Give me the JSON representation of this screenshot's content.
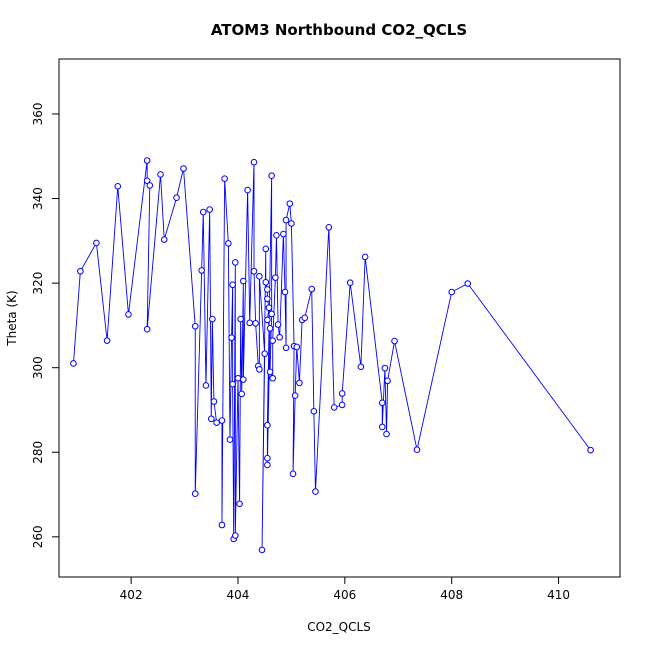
{
  "chart_data": {
    "type": "scatter",
    "title": "ATOM3 Northbound CO2_QCLS",
    "xlabel": "CO2_QCLS",
    "ylabel": "Theta (K)",
    "xlim": [
      400.65,
      411.15
    ],
    "ylim": [
      250.5,
      373.0
    ],
    "xticks": [
      402,
      404,
      406,
      408,
      410
    ],
    "yticks": [
      260,
      280,
      300,
      320,
      340,
      360
    ],
    "xtick_labels": [
      "402",
      "404",
      "406",
      "408",
      "410"
    ],
    "ytick_labels": [
      "260",
      "280",
      "300",
      "320",
      "340",
      "360"
    ],
    "grid": false,
    "legend": "none",
    "series_color": "#0000ff",
    "series": [
      {
        "points": [
          [
            400.92,
            301.0
          ],
          [
            401.05,
            322.8
          ],
          [
            401.35,
            329.5
          ],
          [
            401.55,
            306.4
          ],
          [
            401.75,
            342.9
          ],
          [
            401.95,
            312.6
          ],
          [
            402.3,
            349.0
          ],
          [
            402.3,
            344.2
          ],
          [
            402.35,
            343.1
          ],
          [
            402.3,
            309.1
          ],
          [
            402.55,
            345.7
          ],
          [
            402.62,
            330.3
          ],
          [
            402.85,
            340.2
          ],
          [
            402.98,
            347.1
          ],
          [
            403.2,
            309.8
          ],
          [
            403.2,
            270.2
          ],
          [
            403.32,
            323.0
          ],
          [
            403.35,
            336.8
          ],
          [
            403.4,
            295.8
          ],
          [
            403.47,
            337.4
          ],
          [
            403.5,
            287.9
          ],
          [
            403.52,
            311.5
          ],
          [
            403.55,
            292.0
          ],
          [
            403.6,
            287.0
          ],
          [
            403.7,
            287.5
          ],
          [
            403.7,
            262.8
          ],
          [
            403.75,
            344.7
          ],
          [
            403.82,
            329.4
          ],
          [
            403.85,
            283.0
          ],
          [
            403.88,
            307.1
          ],
          [
            403.9,
            319.6
          ],
          [
            403.9,
            296.1
          ],
          [
            403.92,
            259.5
          ],
          [
            403.95,
            324.9
          ],
          [
            403.95,
            260.3
          ],
          [
            404.0,
            297.5
          ],
          [
            404.03,
            267.8
          ],
          [
            404.05,
            311.5
          ],
          [
            404.07,
            293.8
          ],
          [
            404.1,
            320.5
          ],
          [
            404.1,
            297.2
          ],
          [
            404.18,
            342.0
          ],
          [
            404.22,
            310.6
          ],
          [
            404.3,
            348.6
          ],
          [
            404.3,
            322.8
          ],
          [
            404.33,
            310.5
          ],
          [
            404.38,
            300.4
          ],
          [
            404.4,
            299.6
          ],
          [
            404.4,
            321.6
          ],
          [
            404.5,
            303.3
          ],
          [
            404.45,
            256.9
          ],
          [
            404.52,
            328.1
          ],
          [
            404.52,
            320.2
          ],
          [
            404.55,
            318.5
          ],
          [
            404.55,
            316.3
          ],
          [
            404.58,
            314.2
          ],
          [
            404.55,
            311.3
          ],
          [
            404.6,
            309.3
          ],
          [
            404.55,
            277.0
          ],
          [
            404.55,
            278.6
          ],
          [
            404.55,
            286.4
          ],
          [
            404.63,
            345.4
          ],
          [
            404.63,
            312.7
          ],
          [
            404.6,
            299.0
          ],
          [
            404.65,
            297.5
          ],
          [
            404.65,
            306.4
          ],
          [
            404.7,
            321.3
          ],
          [
            404.72,
            331.3
          ],
          [
            404.75,
            310.2
          ],
          [
            404.78,
            307.2
          ],
          [
            404.85,
            331.6
          ],
          [
            404.88,
            317.9
          ],
          [
            404.9,
            304.7
          ],
          [
            404.9,
            334.9
          ],
          [
            404.97,
            338.8
          ],
          [
            405.0,
            334.1
          ],
          [
            405.05,
            305.1
          ],
          [
            405.03,
            274.9
          ],
          [
            405.07,
            293.4
          ],
          [
            405.1,
            304.9
          ],
          [
            405.15,
            296.4
          ],
          [
            405.2,
            311.3
          ],
          [
            405.25,
            311.8
          ],
          [
            405.38,
            318.6
          ],
          [
            405.42,
            289.7
          ],
          [
            405.45,
            270.7
          ],
          [
            405.7,
            333.2
          ],
          [
            405.8,
            290.6
          ],
          [
            405.95,
            291.2
          ],
          [
            405.95,
            293.9
          ],
          [
            406.1,
            320.1
          ],
          [
            406.3,
            300.2
          ],
          [
            406.38,
            326.2
          ],
          [
            406.7,
            291.7
          ],
          [
            406.7,
            286.0
          ],
          [
            406.75,
            299.9
          ],
          [
            406.78,
            284.3
          ],
          [
            406.8,
            296.9
          ],
          [
            406.93,
            306.3
          ],
          [
            407.35,
            280.6
          ],
          [
            408.0,
            317.9
          ],
          [
            408.3,
            319.9
          ],
          [
            410.6,
            280.5
          ]
        ]
      }
    ]
  }
}
